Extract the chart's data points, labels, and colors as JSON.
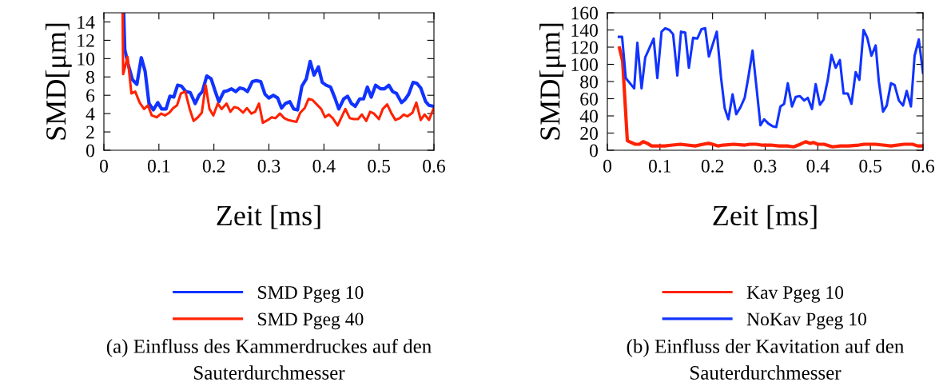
{
  "chart_data": [
    {
      "type": "line",
      "xlabel": "Zeit [ms]",
      "ylabel": "SMD[μm]",
      "xlim": [
        0,
        0.6
      ],
      "ylim": [
        0,
        15
      ],
      "xticks": [
        0,
        0.1,
        0.2,
        0.3,
        0.4,
        0.5,
        0.6
      ],
      "yticks": [
        0,
        2,
        4,
        6,
        8,
        10,
        12,
        14
      ],
      "legend": "bottom",
      "grid": false,
      "annotations": [
        "(a) Einfluss des Kammerdruckes auf den\nSauterdurchmesser"
      ],
      "series": [
        {
          "name": "SMD Pgeg 10",
          "color": "#1133ff",
          "x": [
            0.036,
            0.038,
            0.044,
            0.052,
            0.06,
            0.068,
            0.075,
            0.082,
            0.09,
            0.098,
            0.105,
            0.113,
            0.12,
            0.127,
            0.134,
            0.141,
            0.149,
            0.157,
            0.166,
            0.173,
            0.179,
            0.187,
            0.195,
            0.202,
            0.209,
            0.218,
            0.225,
            0.232,
            0.24,
            0.247,
            0.254,
            0.261,
            0.27,
            0.277,
            0.285,
            0.293,
            0.3,
            0.308,
            0.316,
            0.323,
            0.33,
            0.338,
            0.345,
            0.352,
            0.36,
            0.368,
            0.375,
            0.382,
            0.39,
            0.397,
            0.404,
            0.412,
            0.42,
            0.427,
            0.436,
            0.443,
            0.45,
            0.457,
            0.465,
            0.472,
            0.479,
            0.486,
            0.494,
            0.503,
            0.51,
            0.518,
            0.525,
            0.532,
            0.541,
            0.547,
            0.554,
            0.562,
            0.569,
            0.576,
            0.585,
            0.591,
            0.599
          ],
          "values": [
            15,
            11.0,
            9.4,
            7.7,
            7.2,
            10.1,
            8.6,
            5.1,
            4.4,
            5.2,
            4.5,
            4.5,
            5.9,
            5.8,
            7.1,
            7.0,
            6.4,
            6.3,
            5.1,
            6.0,
            6.4,
            8.1,
            7.8,
            6.5,
            5.3,
            6.4,
            6.5,
            6.7,
            6.4,
            6.8,
            6.7,
            6.4,
            7.5,
            7.6,
            7.5,
            6.1,
            5.7,
            6.0,
            5.7,
            4.6,
            5.1,
            5.3,
            4.5,
            4.4,
            7.0,
            7.8,
            9.7,
            8.2,
            9.1,
            7.4,
            7.1,
            6.9,
            5.7,
            4.5,
            5.6,
            5.9,
            5.1,
            4.8,
            5.6,
            5.6,
            6.9,
            5.8,
            7.1,
            6.7,
            6.7,
            7.1,
            6.4,
            6.2,
            5.2,
            5.5,
            6.1,
            7.4,
            7.3,
            6.8,
            5.3,
            4.9,
            4.8
          ]
        },
        {
          "name": "SMD Pgeg 40",
          "color": "#ff2200",
          "x": [
            0.034,
            0.035,
            0.043,
            0.05,
            0.057,
            0.065,
            0.073,
            0.08,
            0.087,
            0.096,
            0.104,
            0.111,
            0.119,
            0.126,
            0.133,
            0.14,
            0.148,
            0.156,
            0.163,
            0.171,
            0.178,
            0.185,
            0.192,
            0.199,
            0.207,
            0.214,
            0.223,
            0.23,
            0.237,
            0.244,
            0.253,
            0.26,
            0.268,
            0.275,
            0.282,
            0.289,
            0.298,
            0.305,
            0.312,
            0.32,
            0.328,
            0.335,
            0.342,
            0.35,
            0.357,
            0.365,
            0.372,
            0.379,
            0.387,
            0.395,
            0.402,
            0.409,
            0.416,
            0.425,
            0.432,
            0.439,
            0.447,
            0.454,
            0.462,
            0.469,
            0.477,
            0.484,
            0.491,
            0.5,
            0.507,
            0.515,
            0.523,
            0.53,
            0.538,
            0.545,
            0.552,
            0.561,
            0.568,
            0.576,
            0.583,
            0.591,
            0.599
          ],
          "values": [
            15,
            8.3,
            10.2,
            6.2,
            6.4,
            5.2,
            4.5,
            4.9,
            3.8,
            3.6,
            4.0,
            3.8,
            4.1,
            4.6,
            4.9,
            6.2,
            6.4,
            4.5,
            3.2,
            3.6,
            4.1,
            7.1,
            4.5,
            3.8,
            5.1,
            4.5,
            5.1,
            4.2,
            4.7,
            4.6,
            4.1,
            4.6,
            4.0,
            4.2,
            5.1,
            3.0,
            3.3,
            3.6,
            3.5,
            4.0,
            3.5,
            3.3,
            3.2,
            3.1,
            4.1,
            4.6,
            5.6,
            5.5,
            5.0,
            4.5,
            3.6,
            3.9,
            3.5,
            2.7,
            3.6,
            4.5,
            3.5,
            3.4,
            3.4,
            3.9,
            3.2,
            4.2,
            4.0,
            3.4,
            4.5,
            5.0,
            4.0,
            3.3,
            3.5,
            3.9,
            3.7,
            4.1,
            5.2,
            3.3,
            3.9,
            3.3,
            4.5
          ]
        }
      ]
    },
    {
      "type": "line",
      "xlabel": "Zeit [ms]",
      "ylabel": "SMD[μm]",
      "xlim": [
        0,
        0.6
      ],
      "ylim": [
        0,
        160
      ],
      "xticks": [
        0,
        0.1,
        0.2,
        0.3,
        0.4,
        0.5,
        0.6
      ],
      "yticks": [
        0,
        20,
        40,
        60,
        80,
        100,
        120,
        140,
        160
      ],
      "legend": "bottom",
      "grid": false,
      "annotations": [
        "(b) Einfluss der Kavitation auf den\nSauterdurchmesser"
      ],
      "series": [
        {
          "name": "Kav Pgeg 10",
          "color": "#ff2200",
          "x": [
            0.023,
            0.029,
            0.038,
            0.053,
            0.061,
            0.068,
            0.076,
            0.084,
            0.094,
            0.109,
            0.124,
            0.139,
            0.152,
            0.167,
            0.182,
            0.192,
            0.2,
            0.21,
            0.22,
            0.24,
            0.261,
            0.271,
            0.283,
            0.293,
            0.311,
            0.326,
            0.342,
            0.354,
            0.367,
            0.377,
            0.385,
            0.392,
            0.4,
            0.412,
            0.428,
            0.443,
            0.458,
            0.478,
            0.488,
            0.509,
            0.524,
            0.539,
            0.564,
            0.58,
            0.59,
            0.6
          ],
          "values": [
            119,
            104,
            11,
            7,
            7,
            10,
            8,
            5,
            5,
            5,
            6,
            7,
            6,
            5,
            7,
            8,
            7,
            5,
            6,
            7,
            6,
            7,
            7,
            6,
            6,
            5,
            5,
            4,
            7,
            10,
            8,
            9,
            7,
            7,
            4,
            5,
            5,
            6,
            7,
            7,
            6,
            5,
            7,
            7,
            5,
            5
          ]
        },
        {
          "name": "NoKav Pgeg 10",
          "color": "#1133ff",
          "x": [
            0.022,
            0.028,
            0.035,
            0.051,
            0.057,
            0.065,
            0.072,
            0.088,
            0.095,
            0.103,
            0.11,
            0.118,
            0.125,
            0.133,
            0.14,
            0.148,
            0.155,
            0.163,
            0.171,
            0.179,
            0.186,
            0.193,
            0.208,
            0.216,
            0.223,
            0.23,
            0.238,
            0.245,
            0.253,
            0.261,
            0.268,
            0.276,
            0.283,
            0.291,
            0.298,
            0.306,
            0.314,
            0.321,
            0.329,
            0.336,
            0.343,
            0.351,
            0.358,
            0.366,
            0.374,
            0.381,
            0.389,
            0.396,
            0.404,
            0.411,
            0.419,
            0.426,
            0.434,
            0.442,
            0.449,
            0.457,
            0.464,
            0.472,
            0.479,
            0.487,
            0.494,
            0.502,
            0.51,
            0.516,
            0.524,
            0.531,
            0.539,
            0.546,
            0.554,
            0.562,
            0.569,
            0.577,
            0.584,
            0.592,
            0.6
          ],
          "values": [
            132,
            132,
            84,
            72,
            125,
            72,
            108,
            130,
            84,
            138,
            142,
            140,
            135,
            87,
            138,
            137,
            96,
            131,
            130,
            141,
            142,
            109,
            138,
            85,
            49,
            36,
            65,
            42,
            50,
            61,
            85,
            116,
            76,
            29,
            36,
            31,
            28,
            27,
            51,
            54,
            78,
            51,
            62,
            63,
            58,
            61,
            48,
            77,
            53,
            59,
            82,
            111,
            96,
            105,
            66,
            66,
            54,
            91,
            82,
            140,
            131,
            110,
            122,
            80,
            45,
            52,
            78,
            76,
            58,
            52,
            69,
            51,
            110,
            129,
            90
          ]
        }
      ]
    }
  ]
}
